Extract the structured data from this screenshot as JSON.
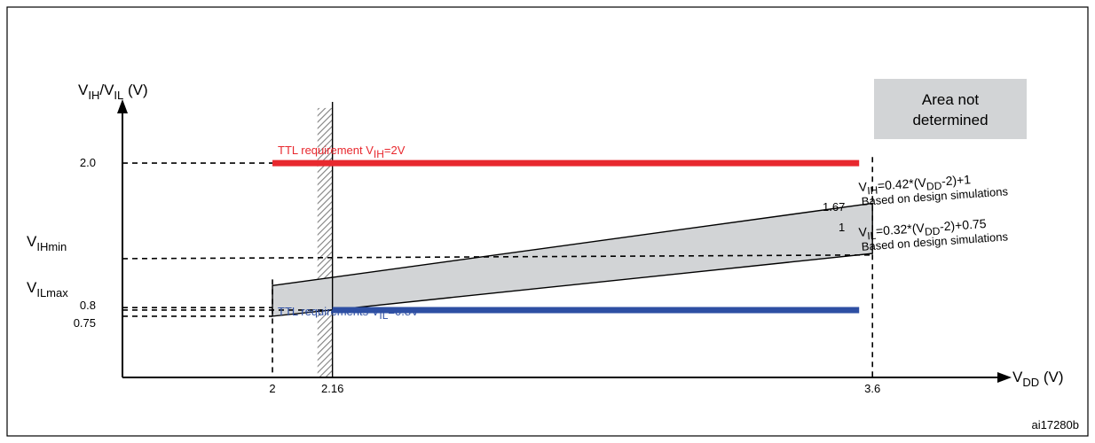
{
  "chart_data": {
    "type": "line",
    "xlabel": {
      "main": "V",
      "sub": "DD",
      "unit": " (V)"
    },
    "ylabel": {
      "a": "V",
      "a_sub": "IH",
      "sep": "/V",
      "b_sub": "IL",
      "unit": " (V)"
    },
    "xlim": [
      1.6,
      3.9
    ],
    "ylim": [
      0.25,
      2.5
    ],
    "x_ticks": [
      {
        "value": 2,
        "label": "2"
      },
      {
        "value": 2.16,
        "label": "2.16"
      },
      {
        "value": 3.6,
        "label": "3.6"
      }
    ],
    "y_ticks": [
      {
        "value": 2.0,
        "label": "2.0"
      },
      {
        "value": 0.8,
        "label": "0.8"
      },
      {
        "value": 0.75,
        "label": "0.75"
      }
    ],
    "y_markers": [
      {
        "value": 1.22,
        "main": "V",
        "sub": "IHmin"
      },
      {
        "value": 0.82,
        "main": "V",
        "sub": "ILmax"
      }
    ],
    "hatched_region": {
      "x_from": 2.12,
      "x_to": 2.16
    },
    "vertical_line_x": 2.16,
    "series": [
      {
        "name": "TTL requirement VIH=2V",
        "label": {
          "main": "TTL requirement  V",
          "sub": "IH",
          "tail": "=2V"
        },
        "color": "#e8282e",
        "x": [
          2,
          3.6
        ],
        "y": [
          2.0,
          2.0
        ]
      },
      {
        "name": "TTL requirements VIL=0.8V",
        "label": {
          "main": "TTL requirements V",
          "sub": "IL",
          "tail": "=0.8V"
        },
        "color": "#2e4fa3",
        "x": [
          2.16,
          3.6
        ],
        "y": [
          0.8,
          0.8
        ]
      },
      {
        "name": "VIH=0.42*(VDD-2)+1",
        "x": [
          2,
          3.6
        ],
        "y": [
          1.0,
          1.672
        ]
      },
      {
        "name": "VIL=0.32*(VDD-2)+0.75",
        "x": [
          2,
          3.6
        ],
        "y": [
          0.75,
          1.262
        ]
      }
    ],
    "band": {
      "fill": "#d2d4d6",
      "upper_series": 2,
      "lower_series": 3
    },
    "band_end_labels": [
      "1.67",
      "1"
    ],
    "right_labels": [
      {
        "pre": "V",
        "sub1": "IH",
        "mid": "=0.42*(V",
        "sub2": "DD",
        "post": "-2)+1",
        "note": "Based on design simulations"
      },
      {
        "pre": "V",
        "sub1": "IL",
        "mid": "=0.32*(V",
        "sub2": "DD",
        "post": "-2)+0.75",
        "note": "Based on design simulations"
      }
    ],
    "legend": {
      "text_line1": "Area not",
      "text_line2": "determined",
      "fill": "#d2d4d6",
      "position": "top-right"
    },
    "figure_id": "ai17280b"
  }
}
